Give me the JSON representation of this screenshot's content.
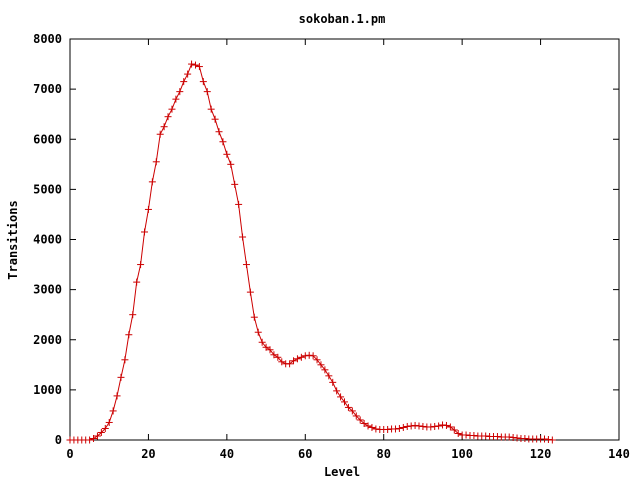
{
  "chart_data": {
    "type": "line",
    "title": "sokoban.1.pm",
    "xlabel": "Level",
    "ylabel": "Transitions",
    "xlim": [
      0,
      140
    ],
    "ylim": [
      0,
      8000
    ],
    "x_ticks": [
      0,
      20,
      40,
      60,
      80,
      100,
      120,
      140
    ],
    "y_ticks": [
      0,
      1000,
      2000,
      3000,
      4000,
      5000,
      6000,
      7000,
      8000
    ],
    "x_tick_labels": [
      "0",
      "20",
      "40",
      "60",
      "80",
      "100",
      "120",
      "140"
    ],
    "y_tick_labels": [
      "0",
      "1000",
      "2000",
      "3000",
      "4000",
      "5000",
      "6000",
      "7000",
      "8000"
    ],
    "grid": false,
    "line_color": "#cc0000",
    "marker": "plus",
    "series": [
      {
        "x": [
          0,
          1,
          2,
          3,
          4,
          5,
          6,
          7,
          8,
          9,
          10,
          11,
          12,
          13,
          14,
          15,
          16,
          17,
          18,
          19,
          20,
          21,
          22,
          23,
          24,
          25,
          26,
          27,
          28,
          29,
          30,
          31,
          32,
          33,
          34,
          35,
          36,
          37,
          38,
          39,
          40,
          41,
          42,
          43,
          44,
          45,
          46,
          47,
          48,
          49,
          50,
          51,
          52,
          53,
          54,
          55,
          56,
          57,
          58,
          59,
          60,
          61,
          62,
          63,
          64,
          65,
          66,
          67,
          68,
          69,
          70,
          71,
          72,
          73,
          74,
          75,
          76,
          77,
          78,
          79,
          80,
          81,
          82,
          83,
          84,
          85,
          86,
          87,
          88,
          89,
          90,
          91,
          92,
          93,
          94,
          95,
          96,
          97,
          98,
          99,
          100,
          101,
          102,
          103,
          104,
          105,
          106,
          107,
          108,
          109,
          110,
          111,
          112,
          113,
          114,
          115,
          116,
          117,
          118,
          119,
          120,
          121,
          122,
          123
        ],
        "values": [
          0,
          0,
          0,
          0,
          0,
          0,
          30,
          80,
          150,
          230,
          350,
          580,
          880,
          1250,
          1600,
          2100,
          2500,
          3150,
          3500,
          4150,
          4600,
          5150,
          5550,
          6100,
          6250,
          6450,
          6600,
          6800,
          6950,
          7150,
          7300,
          7500,
          7480,
          7450,
          7150,
          6950,
          6600,
          6400,
          6150,
          5950,
          5700,
          5500,
          5100,
          4700,
          4050,
          3500,
          2950,
          2450,
          2150,
          1950,
          1850,
          1800,
          1700,
          1650,
          1560,
          1520,
          1520,
          1580,
          1620,
          1650,
          1680,
          1690,
          1680,
          1600,
          1500,
          1400,
          1280,
          1150,
          980,
          860,
          760,
          650,
          580,
          480,
          400,
          330,
          280,
          250,
          220,
          210,
          210,
          210,
          220,
          220,
          230,
          250,
          270,
          280,
          290,
          280,
          270,
          260,
          260,
          270,
          280,
          300,
          290,
          260,
          200,
          130,
          100,
          100,
          90,
          90,
          80,
          80,
          80,
          70,
          70,
          70,
          60,
          60,
          60,
          50,
          40,
          30,
          30,
          20,
          20,
          20,
          20,
          20,
          10,
          0
        ]
      }
    ]
  }
}
